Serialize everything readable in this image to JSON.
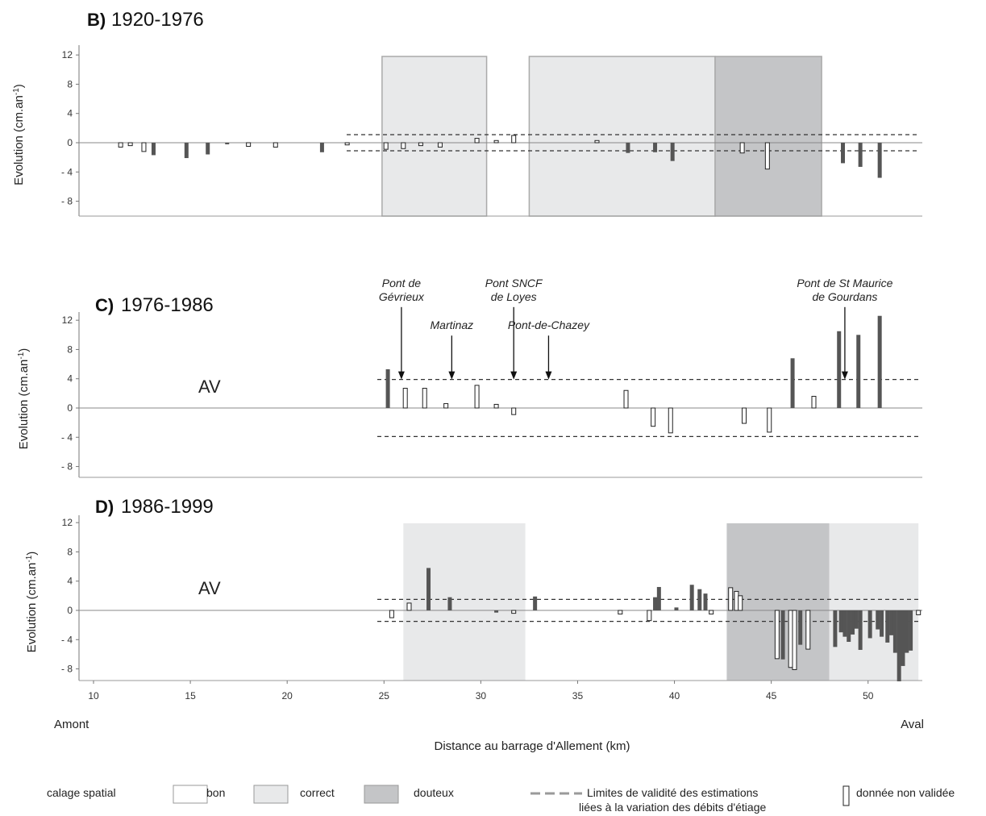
{
  "chart_data": {
    "type": "bar",
    "xlabel": "Distance au barrage d'Allement (km)",
    "ylabel": "Evolution (cm.an-1)",
    "xlim": [
      9.5,
      52.8
    ],
    "x_ticks": [
      10,
      15,
      20,
      25,
      30,
      35,
      40,
      45,
      50
    ],
    "x_tick_labels": [
      "10",
      "15",
      "20",
      "25",
      "30",
      "35",
      "40",
      "45",
      "50"
    ],
    "x_end_labels": {
      "left": "Amont",
      "right": "Aval"
    },
    "ylim": [
      -10,
      12
    ],
    "y_ticks": [
      12,
      8,
      4,
      0,
      -4,
      -8
    ],
    "y_tick_labels": [
      "12",
      "8",
      "4",
      "0",
      "- 4",
      "- 8"
    ],
    "panels": [
      {
        "letter": "B)",
        "title": "1920-1976",
        "av_label": "",
        "validity_limit": 1.1,
        "zones": [
          {
            "x0": 24.9,
            "x1": 30.3,
            "quality": "correct"
          },
          {
            "x0": 32.5,
            "x1": 42.1,
            "quality": "correct"
          },
          {
            "x0": 42.1,
            "x1": 47.6,
            "quality": "douteux"
          }
        ],
        "bars": [
          {
            "x": 11.4,
            "y": -0.6,
            "validated": false
          },
          {
            "x": 11.9,
            "y": -0.4,
            "validated": false
          },
          {
            "x": 12.6,
            "y": -1.2,
            "validated": false
          },
          {
            "x": 13.1,
            "y": -1.7,
            "validated": true
          },
          {
            "x": 14.8,
            "y": -2.1,
            "validated": true
          },
          {
            "x": 15.9,
            "y": -1.6,
            "validated": true
          },
          {
            "x": 16.9,
            "y": -0.2,
            "validated": true
          },
          {
            "x": 18.0,
            "y": -0.5,
            "validated": false
          },
          {
            "x": 19.4,
            "y": -0.6,
            "validated": false
          },
          {
            "x": 21.8,
            "y": -1.3,
            "validated": true
          },
          {
            "x": 23.1,
            "y": -0.3,
            "validated": false
          },
          {
            "x": 25.1,
            "y": -0.9,
            "validated": false
          },
          {
            "x": 26.0,
            "y": -0.8,
            "validated": false
          },
          {
            "x": 26.9,
            "y": -0.4,
            "validated": false
          },
          {
            "x": 27.9,
            "y": -0.6,
            "validated": false
          },
          {
            "x": 29.8,
            "y": 0.6,
            "validated": false
          },
          {
            "x": 30.8,
            "y": 0.3,
            "validated": false
          },
          {
            "x": 31.7,
            "y": 1.0,
            "validated": false
          },
          {
            "x": 36.0,
            "y": 0.3,
            "validated": false
          },
          {
            "x": 37.6,
            "y": -1.4,
            "validated": true
          },
          {
            "x": 39.0,
            "y": -1.3,
            "validated": true
          },
          {
            "x": 39.9,
            "y": -2.5,
            "validated": true
          },
          {
            "x": 43.5,
            "y": -1.4,
            "validated": false
          },
          {
            "x": 44.8,
            "y": -3.6,
            "validated": false
          },
          {
            "x": 48.7,
            "y": -2.8,
            "validated": true
          },
          {
            "x": 49.6,
            "y": -3.3,
            "validated": true
          },
          {
            "x": 50.6,
            "y": -4.8,
            "validated": true
          }
        ]
      },
      {
        "letter": "C)",
        "title": "1976-1986",
        "av_label": "AV",
        "validity_limit": 3.9,
        "zones": [],
        "bars": [
          {
            "x": 25.2,
            "y": 5.3,
            "validated": true
          },
          {
            "x": 26.1,
            "y": 2.7,
            "validated": false
          },
          {
            "x": 27.1,
            "y": 2.7,
            "validated": false
          },
          {
            "x": 28.2,
            "y": 0.6,
            "validated": false
          },
          {
            "x": 29.8,
            "y": 3.1,
            "validated": false
          },
          {
            "x": 30.8,
            "y": 0.5,
            "validated": false
          },
          {
            "x": 31.7,
            "y": -0.9,
            "validated": false
          },
          {
            "x": 37.5,
            "y": 2.4,
            "validated": false
          },
          {
            "x": 38.9,
            "y": -2.5,
            "validated": false
          },
          {
            "x": 39.8,
            "y": -3.4,
            "validated": false
          },
          {
            "x": 43.6,
            "y": -2.1,
            "validated": false
          },
          {
            "x": 44.9,
            "y": -3.3,
            "validated": false
          },
          {
            "x": 46.1,
            "y": 6.8,
            "validated": true
          },
          {
            "x": 47.2,
            "y": 1.6,
            "validated": false
          },
          {
            "x": 48.5,
            "y": 10.5,
            "validated": true
          },
          {
            "x": 49.5,
            "y": 10.0,
            "validated": true
          },
          {
            "x": 50.6,
            "y": 12.6,
            "validated": true
          }
        ],
        "annotations": [
          {
            "x": 25.9,
            "lines": [
              "Pont de",
              "Gévrieux"
            ],
            "arrow_from": 13.8,
            "arrow_to": 3.9
          },
          {
            "x": 28.5,
            "lines": [
              "Martinaz"
            ],
            "arrow_from": 9.9,
            "arrow_to": 3.9
          },
          {
            "x": 31.7,
            "lines": [
              "Pont SNCF",
              "de Loyes"
            ],
            "arrow_from": 13.8,
            "arrow_to": 3.9
          },
          {
            "x": 33.5,
            "lines": [
              "Pont-de-Chazey"
            ],
            "arrow_from": 9.9,
            "arrow_to": 3.9
          },
          {
            "x": 48.8,
            "lines": [
              "Pont de St Maurice",
              "de Gourdans"
            ],
            "arrow_from": 13.8,
            "arrow_to": 3.9
          }
        ]
      },
      {
        "letter": "D)",
        "title": "1986-1999",
        "av_label": "AV",
        "validity_limit": 1.5,
        "zones": [
          {
            "x0": 26.0,
            "x1": 32.3,
            "quality": "correct"
          },
          {
            "x0": 42.7,
            "x1": 48.0,
            "quality": "douteux"
          },
          {
            "x0": 48.0,
            "x1": 52.6,
            "quality": "correct"
          }
        ],
        "bars": [
          {
            "x": 25.4,
            "y": -1.0,
            "validated": false
          },
          {
            "x": 26.3,
            "y": 1.0,
            "validated": false
          },
          {
            "x": 27.3,
            "y": 5.8,
            "validated": true
          },
          {
            "x": 28.4,
            "y": 1.8,
            "validated": true
          },
          {
            "x": 30.8,
            "y": -0.3,
            "validated": true
          },
          {
            "x": 31.7,
            "y": -0.4,
            "validated": false
          },
          {
            "x": 32.8,
            "y": 1.9,
            "validated": true
          },
          {
            "x": 37.2,
            "y": -0.5,
            "validated": false
          },
          {
            "x": 38.7,
            "y": -1.4,
            "validated": false
          },
          {
            "x": 39.0,
            "y": 1.8,
            "validated": true
          },
          {
            "x": 39.2,
            "y": 3.2,
            "validated": true
          },
          {
            "x": 40.1,
            "y": 0.4,
            "validated": true
          },
          {
            "x": 40.9,
            "y": 3.5,
            "validated": true
          },
          {
            "x": 41.3,
            "y": 2.9,
            "validated": true
          },
          {
            "x": 41.6,
            "y": 2.3,
            "validated": true
          },
          {
            "x": 41.9,
            "y": -0.5,
            "validated": false
          },
          {
            "x": 42.9,
            "y": 3.1,
            "validated": false
          },
          {
            "x": 43.2,
            "y": 2.6,
            "validated": false
          },
          {
            "x": 43.4,
            "y": 2.0,
            "validated": false
          },
          {
            "x": 45.3,
            "y": -6.6,
            "validated": false
          },
          {
            "x": 45.6,
            "y": -6.7,
            "validated": true
          },
          {
            "x": 46.0,
            "y": -7.8,
            "validated": false
          },
          {
            "x": 46.2,
            "y": -8.1,
            "validated": false
          },
          {
            "x": 46.5,
            "y": -4.7,
            "validated": true
          },
          {
            "x": 46.9,
            "y": -5.3,
            "validated": false
          },
          {
            "x": 48.3,
            "y": -5.0,
            "validated": true
          },
          {
            "x": 48.6,
            "y": -3.0,
            "validated": true
          },
          {
            "x": 48.8,
            "y": -3.6,
            "validated": true
          },
          {
            "x": 49.0,
            "y": -4.3,
            "validated": true
          },
          {
            "x": 49.2,
            "y": -3.3,
            "validated": true
          },
          {
            "x": 49.4,
            "y": -2.5,
            "validated": true
          },
          {
            "x": 49.6,
            "y": -5.4,
            "validated": true
          },
          {
            "x": 50.1,
            "y": -3.8,
            "validated": true
          },
          {
            "x": 50.5,
            "y": -2.6,
            "validated": true
          },
          {
            "x": 50.7,
            "y": -3.6,
            "validated": true
          },
          {
            "x": 51.0,
            "y": -4.4,
            "validated": true
          },
          {
            "x": 51.2,
            "y": -3.4,
            "validated": true
          },
          {
            "x": 51.4,
            "y": -5.8,
            "validated": true
          },
          {
            "x": 51.6,
            "y": -9.7,
            "validated": true
          },
          {
            "x": 51.8,
            "y": -7.6,
            "validated": true
          },
          {
            "x": 52.0,
            "y": -5.8,
            "validated": true
          },
          {
            "x": 52.2,
            "y": -5.5,
            "validated": true
          },
          {
            "x": 52.6,
            "y": -0.6,
            "validated": false
          }
        ]
      }
    ],
    "legend": {
      "calage_label": "calage spatial",
      "items": [
        {
          "label": "bon",
          "color": "#ffffff"
        },
        {
          "label": "correct",
          "color": "#e8e9ea"
        },
        {
          "label": "douteux",
          "color": "#c4c5c7"
        }
      ],
      "dashed_label_line1": "Limites de validité des estimations",
      "dashed_label_line2": "liées à la variation des débits d'étiage",
      "unvalidated_label": "donnée non validée"
    },
    "colors": {
      "validated_bar": "#555555",
      "unvalidated_fill": "#ffffff",
      "unvalidated_stroke": "#222222",
      "correct_zone": "#e8e9ea",
      "douteux_zone": "#c4c5c7",
      "dashed_line": "#333333",
      "legend_dash": "#9a9a9a"
    }
  }
}
